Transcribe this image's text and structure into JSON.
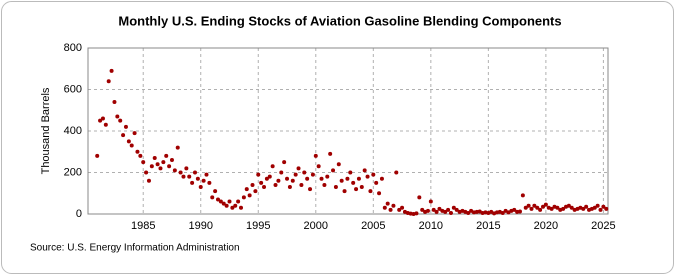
{
  "chart_data": {
    "type": "scatter",
    "title": "Monthly U.S. Ending Stocks of Aviation Gasoline Blending Components",
    "y_label": "Thousand Barrels",
    "source": "Source: U.S. Energy Information Administration",
    "color": "#a00000",
    "grid": true,
    "xlim": [
      1980.2,
      2025.4
    ],
    "xticks": [
      1985,
      1990,
      1995,
      2000,
      2005,
      2010,
      2015,
      2020,
      2025
    ],
    "ylim": [
      0,
      800
    ],
    "yticks": [
      0,
      200,
      400,
      600,
      800
    ],
    "x": [
      1981,
      1981.25,
      1981.5,
      1981.75,
      1982,
      1982.25,
      1982.5,
      1982.75,
      1983,
      1983.25,
      1983.5,
      1983.75,
      1984,
      1984.25,
      1984.5,
      1984.75,
      1985,
      1985.25,
      1985.5,
      1985.75,
      1986,
      1986.25,
      1986.5,
      1986.75,
      1987,
      1987.25,
      1987.5,
      1987.75,
      1988,
      1988.25,
      1988.5,
      1988.75,
      1989,
      1989.25,
      1989.5,
      1989.75,
      1990,
      1990.25,
      1990.5,
      1990.75,
      1991,
      1991.25,
      1991.5,
      1991.75,
      1992,
      1992.25,
      1992.5,
      1992.75,
      1993,
      1993.25,
      1993.5,
      1993.75,
      1994,
      1994.25,
      1994.5,
      1994.75,
      1995,
      1995.25,
      1995.5,
      1995.75,
      1996,
      1996.25,
      1996.5,
      1996.75,
      1997,
      1997.25,
      1997.5,
      1997.75,
      1998,
      1998.25,
      1998.5,
      1998.75,
      1999,
      1999.25,
      1999.5,
      1999.75,
      2000,
      2000.25,
      2000.5,
      2000.75,
      2001,
      2001.25,
      2001.5,
      2001.75,
      2002,
      2002.25,
      2002.5,
      2002.75,
      2003,
      2003.25,
      2003.5,
      2003.75,
      2004,
      2004.25,
      2004.5,
      2004.75,
      2005,
      2005.25,
      2005.5,
      2005.75,
      2006,
      2006.25,
      2006.5,
      2006.75,
      2007,
      2007.25,
      2007.5,
      2007.75,
      2008,
      2008.25,
      2008.5,
      2008.75,
      2009,
      2009.25,
      2009.5,
      2009.75,
      2010,
      2010.25,
      2010.5,
      2010.75,
      2011,
      2011.25,
      2011.5,
      2011.75,
      2012,
      2012.25,
      2012.5,
      2012.75,
      2013,
      2013.25,
      2013.5,
      2013.75,
      2014,
      2014.25,
      2014.5,
      2014.75,
      2015,
      2015.25,
      2015.5,
      2015.75,
      2016,
      2016.25,
      2016.5,
      2016.75,
      2017,
      2017.25,
      2017.5,
      2017.75,
      2018,
      2018.25,
      2018.5,
      2018.75,
      2019,
      2019.25,
      2019.5,
      2019.75,
      2020,
      2020.25,
      2020.5,
      2020.75,
      2021,
      2021.25,
      2021.5,
      2021.75,
      2022,
      2022.25,
      2022.5,
      2022.75,
      2023,
      2023.25,
      2023.5,
      2023.75,
      2024,
      2024.25,
      2024.5,
      2024.75,
      2025,
      2025.25
    ],
    "values": [
      280,
      450,
      460,
      430,
      640,
      690,
      540,
      470,
      450,
      380,
      420,
      350,
      330,
      390,
      300,
      280,
      250,
      200,
      160,
      230,
      270,
      240,
      220,
      250,
      280,
      230,
      260,
      210,
      320,
      200,
      180,
      220,
      180,
      150,
      200,
      170,
      130,
      160,
      190,
      150,
      80,
      110,
      70,
      60,
      50,
      40,
      60,
      30,
      40,
      60,
      30,
      80,
      120,
      90,
      140,
      110,
      190,
      150,
      130,
      170,
      180,
      230,
      140,
      160,
      200,
      250,
      170,
      130,
      160,
      190,
      220,
      140,
      200,
      170,
      120,
      190,
      280,
      230,
      170,
      140,
      180,
      290,
      210,
      130,
      240,
      160,
      110,
      170,
      200,
      150,
      120,
      170,
      130,
      210,
      180,
      110,
      190,
      150,
      100,
      170,
      30,
      50,
      20,
      40,
      200,
      20,
      30,
      10,
      5,
      2,
      0,
      3,
      80,
      20,
      10,
      15,
      60,
      20,
      10,
      25,
      15,
      10,
      20,
      5,
      30,
      20,
      10,
      15,
      10,
      5,
      15,
      8,
      10,
      12,
      5,
      8,
      5,
      10,
      3,
      8,
      10,
      5,
      15,
      8,
      15,
      20,
      10,
      12,
      90,
      30,
      40,
      25,
      40,
      30,
      20,
      35,
      45,
      30,
      25,
      35,
      30,
      20,
      25,
      35,
      40,
      30,
      20,
      25,
      30,
      25,
      35,
      20,
      25,
      30,
      40,
      20,
      35,
      25
    ]
  }
}
